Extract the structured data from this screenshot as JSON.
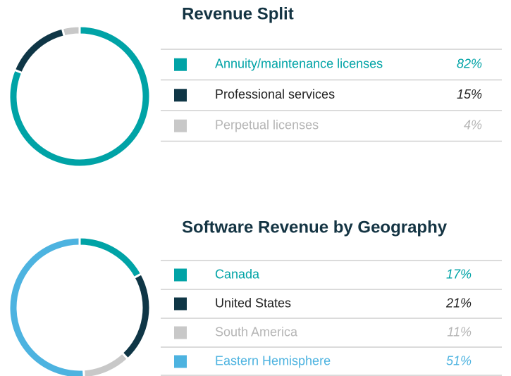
{
  "chart_data": [
    {
      "type": "pie",
      "title": "Revenue Split",
      "categories": [
        "Annuity/maintenance licenses",
        "Professional services",
        "Perpetual licenses"
      ],
      "values": [
        82,
        15,
        4
      ],
      "value_labels": [
        "82%",
        "15%",
        "4%"
      ],
      "colors": [
        "#00a3a6",
        "#0f3646",
        "#c8c8c8"
      ],
      "label_colors": [
        "#00a3a6",
        "#222222",
        "#b5b5b5"
      ]
    },
    {
      "type": "pie",
      "title": "Software Revenue by Geography",
      "categories": [
        "Canada",
        "United States",
        "South America",
        "Eastern Hemisphere"
      ],
      "values": [
        17,
        21,
        11,
        51
      ],
      "value_labels": [
        "17%",
        "21%",
        "11%",
        "51%"
      ],
      "colors": [
        "#00a3a6",
        "#0f3646",
        "#c8c8c8",
        "#4db3e0"
      ],
      "label_colors": [
        "#00a3a6",
        "#222222",
        "#b5b5b5",
        "#4db3e0"
      ]
    }
  ]
}
